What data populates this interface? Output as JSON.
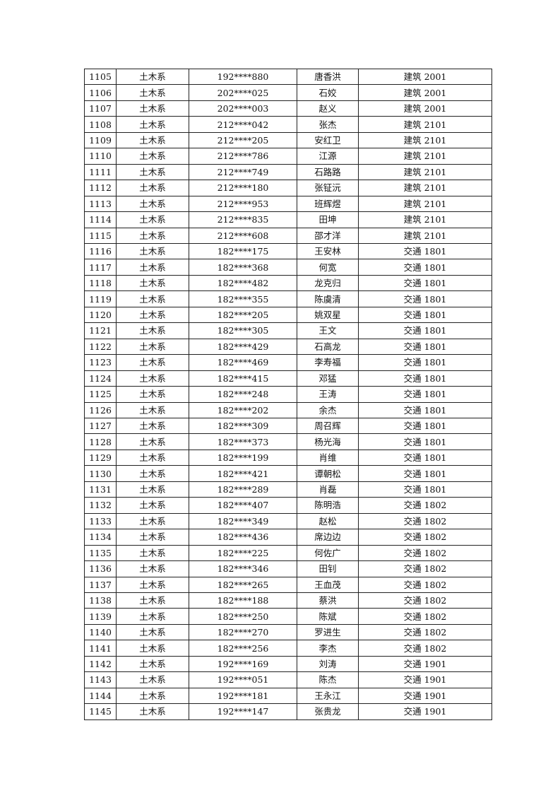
{
  "rows": [
    {
      "no": "1105",
      "dept": "土木系",
      "id": "192****880",
      "name": "唐香洪",
      "class": "建筑 2001"
    },
    {
      "no": "1106",
      "dept": "土木系",
      "id": "202****025",
      "name": "石姣",
      "class": "建筑 2001"
    },
    {
      "no": "1107",
      "dept": "土木系",
      "id": "202****003",
      "name": "赵义",
      "class": "建筑 2001"
    },
    {
      "no": "1108",
      "dept": "土木系",
      "id": "212****042",
      "name": "张杰",
      "class": "建筑 2101"
    },
    {
      "no": "1109",
      "dept": "土木系",
      "id": "212****205",
      "name": "安红卫",
      "class": "建筑 2101"
    },
    {
      "no": "1110",
      "dept": "土木系",
      "id": "212****786",
      "name": "江源",
      "class": "建筑 2101"
    },
    {
      "no": "1111",
      "dept": "土木系",
      "id": "212****749",
      "name": "石路路",
      "class": "建筑 2101"
    },
    {
      "no": "1112",
      "dept": "土木系",
      "id": "212****180",
      "name": "张钲沅",
      "class": "建筑 2101"
    },
    {
      "no": "1113",
      "dept": "土木系",
      "id": "212****953",
      "name": "班辉煜",
      "class": "建筑 2101"
    },
    {
      "no": "1114",
      "dept": "土木系",
      "id": "212****835",
      "name": "田坤",
      "class": "建筑 2101"
    },
    {
      "no": "1115",
      "dept": "土木系",
      "id": "212****608",
      "name": "邵才洋",
      "class": "建筑 2101"
    },
    {
      "no": "1116",
      "dept": "土木系",
      "id": "182****175",
      "name": "王安林",
      "class": "交通 1801"
    },
    {
      "no": "1117",
      "dept": "土木系",
      "id": "182****368",
      "name": "何宽",
      "class": "交通 1801"
    },
    {
      "no": "1118",
      "dept": "土木系",
      "id": "182****482",
      "name": "龙克归",
      "class": "交通 1801"
    },
    {
      "no": "1119",
      "dept": "土木系",
      "id": "182****355",
      "name": "陈虞清",
      "class": "交通 1801"
    },
    {
      "no": "1120",
      "dept": "土木系",
      "id": "182****205",
      "name": "姚双星",
      "class": "交通 1801"
    },
    {
      "no": "1121",
      "dept": "土木系",
      "id": "182****305",
      "name": "王文",
      "class": "交通 1801"
    },
    {
      "no": "1122",
      "dept": "土木系",
      "id": "182****429",
      "name": "石高龙",
      "class": "交通 1801"
    },
    {
      "no": "1123",
      "dept": "土木系",
      "id": "182****469",
      "name": "李寿福",
      "class": "交通 1801"
    },
    {
      "no": "1124",
      "dept": "土木系",
      "id": "182****415",
      "name": "邓猛",
      "class": "交通 1801"
    },
    {
      "no": "1125",
      "dept": "土木系",
      "id": "182****248",
      "name": "王涛",
      "class": "交通 1801"
    },
    {
      "no": "1126",
      "dept": "土木系",
      "id": "182****202",
      "name": "余杰",
      "class": "交通 1801"
    },
    {
      "no": "1127",
      "dept": "土木系",
      "id": "182****309",
      "name": "周召辉",
      "class": "交通 1801"
    },
    {
      "no": "1128",
      "dept": "土木系",
      "id": "182****373",
      "name": "杨光海",
      "class": "交通 1801"
    },
    {
      "no": "1129",
      "dept": "土木系",
      "id": "182****199",
      "name": "肖维",
      "class": "交通 1801"
    },
    {
      "no": "1130",
      "dept": "土木系",
      "id": "182****421",
      "name": "谭朝松",
      "class": "交通 1801"
    },
    {
      "no": "1131",
      "dept": "土木系",
      "id": "182****289",
      "name": "肖磊",
      "class": "交通 1801"
    },
    {
      "no": "1132",
      "dept": "土木系",
      "id": "182****407",
      "name": "陈明浩",
      "class": "交通 1802"
    },
    {
      "no": "1133",
      "dept": "土木系",
      "id": "182****349",
      "name": "赵松",
      "class": "交通 1802"
    },
    {
      "no": "1134",
      "dept": "土木系",
      "id": "182****436",
      "name": "席边边",
      "class": "交通 1802"
    },
    {
      "no": "1135",
      "dept": "土木系",
      "id": "182****225",
      "name": "何佐广",
      "class": "交通 1802"
    },
    {
      "no": "1136",
      "dept": "土木系",
      "id": "182****346",
      "name": "田钊",
      "class": "交通 1802"
    },
    {
      "no": "1137",
      "dept": "土木系",
      "id": "182****265",
      "name": "王血茂",
      "class": "交通 1802"
    },
    {
      "no": "1138",
      "dept": "土木系",
      "id": "182****188",
      "name": "蔡洪",
      "class": "交通 1802"
    },
    {
      "no": "1139",
      "dept": "土木系",
      "id": "182****250",
      "name": "陈斌",
      "class": "交通 1802"
    },
    {
      "no": "1140",
      "dept": "土木系",
      "id": "182****270",
      "name": "罗进生",
      "class": "交通 1802"
    },
    {
      "no": "1141",
      "dept": "土木系",
      "id": "182****256",
      "name": "李杰",
      "class": "交通 1802"
    },
    {
      "no": "1142",
      "dept": "土木系",
      "id": "192****169",
      "name": "刘涛",
      "class": "交通 1901"
    },
    {
      "no": "1143",
      "dept": "土木系",
      "id": "192****051",
      "name": "陈杰",
      "class": "交通 1901"
    },
    {
      "no": "1144",
      "dept": "土木系",
      "id": "192****181",
      "name": "王永江",
      "class": "交通 1901"
    },
    {
      "no": "1145",
      "dept": "土木系",
      "id": "192****147",
      "name": "张贵龙",
      "class": "交通 1901"
    }
  ]
}
